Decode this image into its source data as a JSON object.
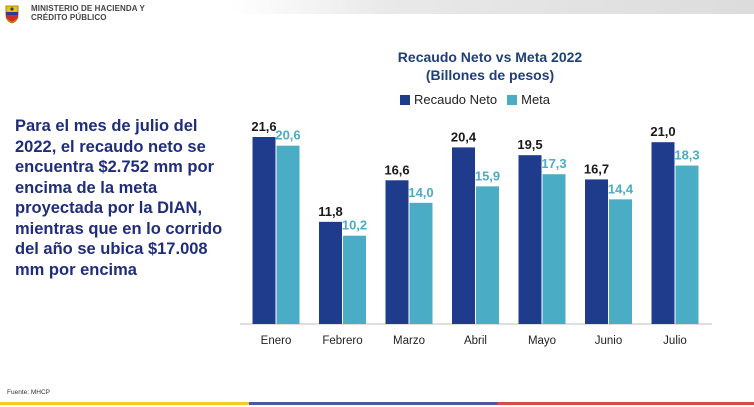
{
  "header": {
    "ministry_line1": "MINISTERIO DE HACIENDA Y",
    "ministry_line2": "CRÉDITO PÚBLICO"
  },
  "body_text": "Para el mes de julio del 2022, el recaudo neto se encuentra $2.752 mm por encima de la meta proyectada por la DIAN, mientras que en lo corrido del año se ubica $17.008 mm por encima",
  "source": "Fuente: MHCP",
  "colors": {
    "recaudo": "#1f3c8c",
    "meta": "#4bacc6",
    "body_text": "#1f2d7a"
  },
  "chart_data": {
    "type": "bar",
    "title": "Recaudo Neto vs Meta 2022",
    "subtitle": "(Billones de pesos)",
    "categories": [
      "Enero",
      "Febrero",
      "Marzo",
      "Abril",
      "Mayo",
      "Junio",
      "Julio"
    ],
    "series": [
      {
        "name": "Recaudo Neto",
        "values": [
          21.6,
          11.8,
          16.6,
          20.4,
          19.5,
          16.7,
          21.0
        ],
        "labels": [
          "21,6",
          "11,8",
          "16,6",
          "20,4",
          "19,5",
          "16,7",
          "21,0"
        ]
      },
      {
        "name": "Meta",
        "values": [
          20.6,
          10.2,
          14.0,
          15.9,
          17.3,
          14.4,
          18.3
        ],
        "labels": [
          "20,6",
          "10,2",
          "14,0",
          "15,9",
          "17,3",
          "14,4",
          "18,3"
        ]
      }
    ],
    "ylim": [
      0,
      21.6
    ],
    "grid": false,
    "legend_position": "top"
  }
}
